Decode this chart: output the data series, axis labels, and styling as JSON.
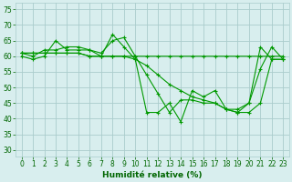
{
  "title": "",
  "xlabel": "Humidité relative (%)",
  "ylabel": "",
  "bg_color": "#d8eeee",
  "grid_color": "#aacccc",
  "line_color": "#009900",
  "marker_color": "#009900",
  "xlim": [
    -0.5,
    23.5
  ],
  "ylim": [
    28,
    77
  ],
  "yticks": [
    30,
    35,
    40,
    45,
    50,
    55,
    60,
    65,
    70,
    75
  ],
  "xticks": [
    0,
    1,
    2,
    3,
    4,
    5,
    6,
    7,
    8,
    9,
    10,
    11,
    12,
    13,
    14,
    15,
    16,
    17,
    18,
    19,
    20,
    21,
    22,
    23
  ],
  "series": [
    [
      60,
      59,
      60,
      65,
      62,
      62,
      62,
      60,
      67,
      63,
      59,
      42,
      42,
      45,
      39,
      49,
      47,
      49,
      43,
      43,
      45,
      63,
      59,
      59
    ],
    [
      61,
      60,
      62,
      62,
      63,
      63,
      62,
      61,
      65,
      66,
      60,
      54,
      48,
      42,
      46,
      46,
      45,
      45,
      43,
      42,
      45,
      56,
      63,
      59
    ],
    [
      61,
      61,
      61,
      61,
      61,
      61,
      60,
      60,
      60,
      60,
      60,
      60,
      60,
      60,
      60,
      60,
      60,
      60,
      60,
      60,
      60,
      60,
      60,
      60
    ],
    [
      61,
      61,
      61,
      61,
      61,
      61,
      60,
      60,
      60,
      60,
      59,
      57,
      54,
      51,
      49,
      47,
      46,
      45,
      43,
      42,
      42,
      45,
      59,
      59
    ]
  ],
  "xlabel_fontsize": 6.5,
  "xlabel_color": "#006600",
  "tick_labelsize": 5.5,
  "tick_color": "#006600",
  "linewidth": 0.8,
  "markersize": 3,
  "markeredgewidth": 0.8
}
